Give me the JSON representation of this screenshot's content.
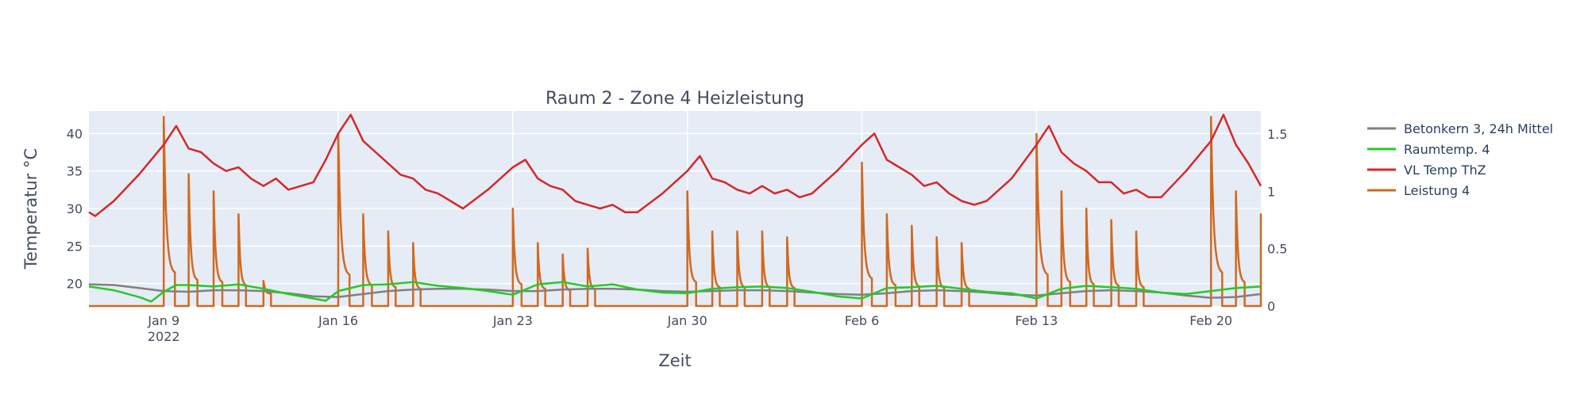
{
  "chart_data": {
    "type": "line",
    "title": "Raum 2 - Zone 4 Heizleistung",
    "xlabel": "Zeit",
    "ylabel": "Temperatur °C",
    "y2label": "",
    "x_range": [
      "2022-01-06",
      "2022-02-22"
    ],
    "x_ticks": [
      {
        "date": "2022-01-09",
        "label": "Jan 9",
        "sublabel": "2022"
      },
      {
        "date": "2022-01-16",
        "label": "Jan 16",
        "sublabel": ""
      },
      {
        "date": "2022-01-23",
        "label": "Jan 23",
        "sublabel": ""
      },
      {
        "date": "2022-01-30",
        "label": "Jan 30",
        "sublabel": ""
      },
      {
        "date": "2022-02-06",
        "label": "Feb 6",
        "sublabel": ""
      },
      {
        "date": "2022-02-13",
        "label": "Feb 13",
        "sublabel": ""
      },
      {
        "date": "2022-02-20",
        "label": "Feb 20",
        "sublabel": ""
      }
    ],
    "y_range": [
      17,
      43
    ],
    "y_ticks": [
      20,
      25,
      30,
      35,
      40
    ],
    "y2_range": [
      0,
      1.7
    ],
    "y2_ticks": [
      0,
      0.5,
      1,
      1.5
    ],
    "grid": true,
    "legend_position": "top-right",
    "series": [
      {
        "name": "Betonkern 3, 24h Mittel",
        "axis": "y",
        "color": "#808080",
        "x": [
          "2022-01-06",
          "2022-01-07",
          "2022-01-08",
          "2022-01-09",
          "2022-01-10",
          "2022-01-11",
          "2022-01-12",
          "2022-01-13",
          "2022-01-14",
          "2022-01-15",
          "2022-01-16",
          "2022-01-17",
          "2022-01-18",
          "2022-01-19",
          "2022-01-20",
          "2022-01-21",
          "2022-01-22",
          "2022-01-23",
          "2022-01-24",
          "2022-01-25",
          "2022-01-26",
          "2022-01-27",
          "2022-01-28",
          "2022-01-29",
          "2022-01-30",
          "2022-01-31",
          "2022-02-01",
          "2022-02-02",
          "2022-02-03",
          "2022-02-04",
          "2022-02-05",
          "2022-02-06",
          "2022-02-07",
          "2022-02-08",
          "2022-02-09",
          "2022-02-10",
          "2022-02-11",
          "2022-02-12",
          "2022-02-13",
          "2022-02-14",
          "2022-02-15",
          "2022-02-16",
          "2022-02-17",
          "2022-02-18",
          "2022-02-19",
          "2022-02-20",
          "2022-02-21",
          "2022-02-22"
        ],
        "y": [
          19.9,
          19.8,
          19.4,
          19.0,
          18.9,
          19.1,
          19.1,
          19.0,
          18.7,
          18.3,
          18.2,
          18.6,
          19.0,
          19.2,
          19.3,
          19.3,
          19.2,
          19.0,
          19.0,
          19.2,
          19.3,
          19.3,
          19.2,
          19.0,
          18.9,
          19.0,
          19.1,
          19.1,
          19.0,
          18.8,
          18.6,
          18.5,
          18.7,
          19.0,
          19.1,
          19.0,
          18.8,
          18.5,
          18.4,
          18.7,
          19.0,
          19.1,
          19.0,
          18.8,
          18.4,
          18.1,
          18.2,
          18.6
        ]
      },
      {
        "name": "Raumtemp. 4",
        "axis": "y",
        "color": "#22cc22",
        "x": [
          "2022-01-06",
          "2022-01-07",
          "2022-01-08",
          "2022-01-08 12:00",
          "2022-01-09",
          "2022-01-09 12:00",
          "2022-01-10",
          "2022-01-11",
          "2022-01-12",
          "2022-01-13",
          "2022-01-14",
          "2022-01-15",
          "2022-01-15 12:00",
          "2022-01-16",
          "2022-01-17",
          "2022-01-18",
          "2022-01-19",
          "2022-01-20",
          "2022-01-21",
          "2022-01-22",
          "2022-01-23",
          "2022-01-24",
          "2022-01-25",
          "2022-01-26",
          "2022-01-27",
          "2022-01-28",
          "2022-01-29",
          "2022-01-30",
          "2022-01-31",
          "2022-02-01",
          "2022-02-02",
          "2022-02-03",
          "2022-02-04",
          "2022-02-05",
          "2022-02-06",
          "2022-02-07",
          "2022-02-08",
          "2022-02-09",
          "2022-02-10",
          "2022-02-11",
          "2022-02-12",
          "2022-02-13",
          "2022-02-14",
          "2022-02-15",
          "2022-02-16",
          "2022-02-17",
          "2022-02-18",
          "2022-02-19",
          "2022-02-20",
          "2022-02-21",
          "2022-02-22"
        ],
        "y": [
          19.6,
          19.1,
          18.2,
          17.6,
          18.9,
          19.8,
          19.8,
          19.6,
          19.9,
          19.3,
          18.6,
          18.0,
          17.7,
          19.0,
          19.8,
          19.9,
          20.2,
          19.7,
          19.4,
          19.0,
          18.5,
          19.9,
          20.2,
          19.6,
          19.9,
          19.2,
          18.8,
          18.7,
          19.3,
          19.5,
          19.6,
          19.4,
          18.9,
          18.3,
          18.0,
          19.4,
          19.5,
          19.7,
          19.3,
          18.9,
          18.7,
          18.0,
          19.3,
          19.7,
          19.5,
          19.3,
          18.8,
          18.6,
          19.0,
          19.4,
          19.6
        ]
      },
      {
        "name": "VL Temp ThZ",
        "axis": "y",
        "color": "#d62728",
        "x": [
          "2022-01-06",
          "2022-01-06 06:00",
          "2022-01-07",
          "2022-01-08",
          "2022-01-09",
          "2022-01-09 12:00",
          "2022-01-10",
          "2022-01-10 12:00",
          "2022-01-11",
          "2022-01-11 12:00",
          "2022-01-12",
          "2022-01-12 12:00",
          "2022-01-13",
          "2022-01-13 12:00",
          "2022-01-14",
          "2022-01-15",
          "2022-01-15 12:00",
          "2022-01-16",
          "2022-01-16 12:00",
          "2022-01-17",
          "2022-01-17 12:00",
          "2022-01-18",
          "2022-01-18 12:00",
          "2022-01-19",
          "2022-01-19 12:00",
          "2022-01-20",
          "2022-01-20 12:00",
          "2022-01-21",
          "2022-01-22",
          "2022-01-23",
          "2022-01-23 12:00",
          "2022-01-24",
          "2022-01-24 12:00",
          "2022-01-25",
          "2022-01-25 12:00",
          "2022-01-26",
          "2022-01-26 12:00",
          "2022-01-27",
          "2022-01-27 12:00",
          "2022-01-28",
          "2022-01-29",
          "2022-01-30",
          "2022-01-30 12:00",
          "2022-01-31",
          "2022-01-31 12:00",
          "2022-02-01",
          "2022-02-01 12:00",
          "2022-02-02",
          "2022-02-02 12:00",
          "2022-02-03",
          "2022-02-03 12:00",
          "2022-02-04",
          "2022-02-05",
          "2022-02-06",
          "2022-02-06 12:00",
          "2022-02-07",
          "2022-02-07 12:00",
          "2022-02-08",
          "2022-02-08 12:00",
          "2022-02-09",
          "2022-02-09 12:00",
          "2022-02-10",
          "2022-02-10 12:00",
          "2022-02-11",
          "2022-02-12",
          "2022-02-13",
          "2022-02-13 12:00",
          "2022-02-14",
          "2022-02-14 12:00",
          "2022-02-15",
          "2022-02-15 12:00",
          "2022-02-16",
          "2022-02-16 12:00",
          "2022-02-17",
          "2022-02-17 12:00",
          "2022-02-18",
          "2022-02-19",
          "2022-02-20",
          "2022-02-20 12:00",
          "2022-02-21",
          "2022-02-21 12:00",
          "2022-02-22"
        ],
        "y": [
          29.5,
          29.0,
          31.0,
          34.5,
          38.5,
          41.0,
          38.0,
          37.5,
          36.0,
          35.0,
          35.5,
          34.0,
          33.0,
          34.0,
          32.5,
          33.5,
          36.5,
          40.0,
          42.5,
          39.0,
          37.5,
          36.0,
          34.5,
          34.0,
          32.5,
          32.0,
          31.0,
          30.0,
          32.5,
          35.5,
          36.5,
          34.0,
          33.0,
          32.5,
          31.0,
          30.5,
          30.0,
          30.5,
          29.5,
          29.5,
          32.0,
          35.0,
          37.0,
          34.0,
          33.5,
          32.5,
          32.0,
          33.0,
          32.0,
          32.5,
          31.5,
          32.0,
          35.0,
          38.5,
          40.0,
          36.5,
          35.5,
          34.5,
          33.0,
          33.5,
          32.0,
          31.0,
          30.5,
          31.0,
          34.0,
          38.5,
          41.0,
          37.5,
          36.0,
          35.0,
          33.5,
          33.5,
          32.0,
          32.5,
          31.5,
          31.5,
          35.0,
          39.0,
          42.5,
          38.5,
          36.0,
          33.0
        ]
      },
      {
        "name": "Leistung 4",
        "axis": "y2",
        "color": "#d2691e",
        "pulses": [
          {
            "start": "2022-01-09",
            "peak": 1.65,
            "on_days": 0.45
          },
          {
            "start": "2022-01-10",
            "peak": 1.15,
            "on_days": 0.35
          },
          {
            "start": "2022-01-11",
            "peak": 1.0,
            "on_days": 0.35
          },
          {
            "start": "2022-01-12",
            "peak": 0.8,
            "on_days": 0.3
          },
          {
            "start": "2022-01-13",
            "peak": 0.22,
            "on_days": 0.3
          },
          {
            "start": "2022-01-16",
            "peak": 1.5,
            "on_days": 0.45
          },
          {
            "start": "2022-01-17",
            "peak": 0.8,
            "on_days": 0.35
          },
          {
            "start": "2022-01-18",
            "peak": 0.65,
            "on_days": 0.3
          },
          {
            "start": "2022-01-19",
            "peak": 0.55,
            "on_days": 0.3
          },
          {
            "start": "2022-01-23",
            "peak": 0.85,
            "on_days": 0.35
          },
          {
            "start": "2022-01-24",
            "peak": 0.55,
            "on_days": 0.3
          },
          {
            "start": "2022-01-25",
            "peak": 0.45,
            "on_days": 0.3
          },
          {
            "start": "2022-01-26",
            "peak": 0.5,
            "on_days": 0.3
          },
          {
            "start": "2022-01-30",
            "peak": 1.0,
            "on_days": 0.35
          },
          {
            "start": "2022-01-31",
            "peak": 0.65,
            "on_days": 0.3
          },
          {
            "start": "2022-02-01",
            "peak": 0.65,
            "on_days": 0.3
          },
          {
            "start": "2022-02-02",
            "peak": 0.65,
            "on_days": 0.3
          },
          {
            "start": "2022-02-03",
            "peak": 0.6,
            "on_days": 0.3
          },
          {
            "start": "2022-02-06",
            "peak": 1.25,
            "on_days": 0.4
          },
          {
            "start": "2022-02-07",
            "peak": 0.8,
            "on_days": 0.35
          },
          {
            "start": "2022-02-08",
            "peak": 0.7,
            "on_days": 0.3
          },
          {
            "start": "2022-02-09",
            "peak": 0.6,
            "on_days": 0.3
          },
          {
            "start": "2022-02-10",
            "peak": 0.55,
            "on_days": 0.3
          },
          {
            "start": "2022-02-13",
            "peak": 1.5,
            "on_days": 0.45
          },
          {
            "start": "2022-02-14",
            "peak": 1.0,
            "on_days": 0.35
          },
          {
            "start": "2022-02-15",
            "peak": 0.85,
            "on_days": 0.3
          },
          {
            "start": "2022-02-16",
            "peak": 0.75,
            "on_days": 0.3
          },
          {
            "start": "2022-02-17",
            "peak": 0.65,
            "on_days": 0.3
          },
          {
            "start": "2022-02-20",
            "peak": 1.65,
            "on_days": 0.45
          },
          {
            "start": "2022-02-21",
            "peak": 1.0,
            "on_days": 0.35
          },
          {
            "start": "2022-02-22",
            "peak": 0.8,
            "on_days": 0.3
          }
        ]
      }
    ]
  }
}
